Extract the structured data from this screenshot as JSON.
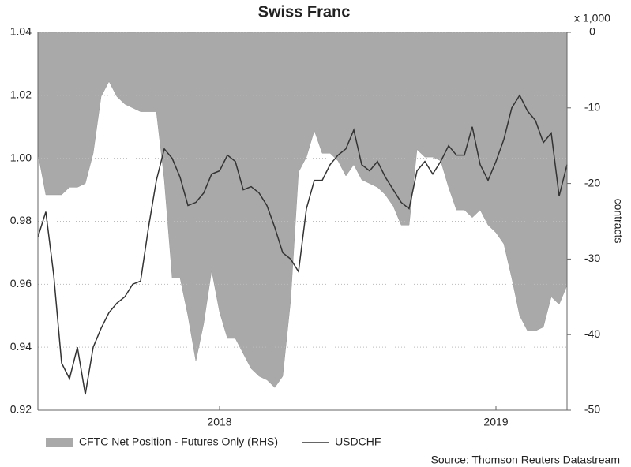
{
  "chart_data": {
    "type": "line-area",
    "title": "Swiss Franc",
    "y2_unit": "x 1,000",
    "y2_label": "contracts",
    "source": "Source: Thomson Reuters Datastream",
    "categories": [
      null,
      null,
      null,
      null,
      null,
      null,
      null,
      null,
      null,
      null,
      null,
      null,
      null,
      null,
      null,
      null,
      null,
      null,
      null,
      null,
      null,
      null,
      null,
      "2018",
      null,
      null,
      null,
      null,
      null,
      null,
      null,
      null,
      null,
      null,
      null,
      null,
      null,
      null,
      null,
      null,
      null,
      null,
      null,
      null,
      null,
      null,
      null,
      null,
      null,
      null,
      null,
      null,
      null,
      null,
      null,
      null,
      null,
      null,
      "2019",
      null,
      null,
      null,
      null,
      null,
      null,
      null,
      null,
      null
    ],
    "series": [
      {
        "name": "CFTC Net Position - Futures Only (RHS)",
        "color": "#a9a9a9",
        "axis": "y2",
        "kind": "area",
        "values": [
          -16,
          -21.5,
          -21.5,
          -21.5,
          -20.5,
          -20.5,
          -20,
          -16,
          -8.5,
          -6.5,
          -8.5,
          -9.5,
          -10,
          -10.5,
          -10.5,
          -10.5,
          -19.5,
          -32.5,
          -32.5,
          -37.5,
          -43.5,
          -38.5,
          -31.5,
          -37,
          -40.5,
          -40.5,
          -42.5,
          -44.5,
          -45.5,
          -46,
          -47,
          -45.5,
          -35.5,
          -18.5,
          -16.5,
          -13,
          -16,
          -16,
          -17,
          -19,
          -17.5,
          -19.5,
          -20,
          -20.5,
          -21.5,
          -23,
          -25.5,
          -25.5,
          -15.5,
          -16.5,
          -16.5,
          -17,
          -20.5,
          -23.5,
          -23.5,
          -24.5,
          -23.5,
          -25.5,
          -26.5,
          -28,
          -32.5,
          -37.5,
          -39.5,
          -39.5,
          -39,
          -35,
          -36,
          -33.5
        ]
      },
      {
        "name": "USDCHF",
        "color": "#333333",
        "kind": "line",
        "values": [
          0.975,
          0.983,
          0.963,
          0.935,
          0.93,
          0.94,
          0.925,
          0.94,
          0.946,
          0.951,
          0.954,
          0.956,
          0.96,
          0.961,
          0.978,
          0.993,
          1.003,
          1.0,
          0.994,
          0.985,
          0.986,
          0.989,
          0.995,
          0.996,
          1.001,
          0.999,
          0.99,
          0.991,
          0.989,
          0.985,
          0.978,
          0.97,
          0.968,
          0.964,
          0.984,
          0.993,
          0.993,
          0.998,
          1.001,
          1.003,
          1.009,
          0.998,
          0.996,
          0.999,
          0.994,
          0.99,
          0.986,
          0.984,
          0.996,
          0.999,
          0.995,
          0.999,
          1.004,
          1.001,
          1.001,
          1.01,
          0.998,
          0.993,
          0.999,
          1.006,
          1.016,
          1.02,
          1.015,
          1.012,
          1.005,
          1.008,
          0.988,
          0.998
        ]
      }
    ],
    "ylim": [
      0.92,
      1.04
    ],
    "yticks": [
      0.92,
      0.94,
      0.96,
      0.98,
      {
        "value": 1,
        "label": "1.00"
      },
      1.02,
      1.04
    ],
    "y2lim": [
      -50,
      0
    ],
    "y2ticks": [
      -50,
      -40,
      -30,
      -20,
      -10,
      0
    ],
    "grid": true
  }
}
